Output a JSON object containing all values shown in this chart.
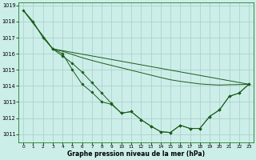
{
  "title": "Graphe pression niveau de la mer (hPa)",
  "bg_color": "#cceee8",
  "grid_color": "#aacccc",
  "line_color": "#1a5c1a",
  "xlim": [
    -0.5,
    23.5
  ],
  "ylim": [
    1010.5,
    1019.2
  ],
  "xticks": [
    0,
    1,
    2,
    3,
    4,
    5,
    6,
    7,
    8,
    9,
    10,
    11,
    12,
    13,
    14,
    15,
    16,
    17,
    18,
    19,
    20,
    21,
    22,
    23
  ],
  "yticks": [
    1011,
    1012,
    1013,
    1014,
    1015,
    1016,
    1017,
    1018,
    1019
  ],
  "line1_x": [
    0,
    1,
    2,
    3,
    4,
    5,
    6,
    7,
    8,
    9,
    10,
    11,
    12,
    13,
    14,
    15,
    16,
    17,
    18,
    19,
    20,
    21,
    22,
    23
  ],
  "line1_y": [
    1018.7,
    1018.0,
    1017.0,
    1016.3,
    1016.0,
    1015.0,
    1014.1,
    1013.6,
    1013.0,
    1012.85,
    1012.3,
    1012.4,
    1011.9,
    1011.5,
    1011.15,
    1011.1,
    1011.55,
    1011.35,
    1011.35,
    1012.1,
    1012.5,
    1013.35,
    1013.55,
    1014.1
  ],
  "line2_x": [
    0,
    3,
    4,
    5,
    6,
    7,
    8,
    9,
    10,
    11,
    12,
    13,
    14,
    15,
    16,
    17,
    18,
    19,
    20,
    21,
    22,
    23
  ],
  "line2_y": [
    1018.7,
    1016.3,
    1016.15,
    1015.95,
    1015.75,
    1015.58,
    1015.42,
    1015.27,
    1015.12,
    1014.97,
    1014.82,
    1014.67,
    1014.52,
    1014.38,
    1014.28,
    1014.2,
    1014.12,
    1014.08,
    1014.05,
    1014.07,
    1014.08,
    1014.1
  ],
  "line3_x": [
    0,
    3,
    23
  ],
  "line3_y": [
    1018.7,
    1016.3,
    1014.1
  ],
  "line4_x": [
    3,
    4,
    5,
    6,
    7,
    8,
    9,
    10,
    11,
    12,
    13,
    14,
    15,
    16,
    17,
    18,
    19,
    20,
    21,
    22,
    23
  ],
  "line4_y": [
    1016.3,
    1015.85,
    1015.4,
    1014.85,
    1014.2,
    1013.55,
    1012.9,
    1012.3,
    1012.4,
    1011.9,
    1011.5,
    1011.15,
    1011.1,
    1011.55,
    1011.35,
    1011.35,
    1012.1,
    1012.5,
    1013.35,
    1013.55,
    1014.1
  ]
}
